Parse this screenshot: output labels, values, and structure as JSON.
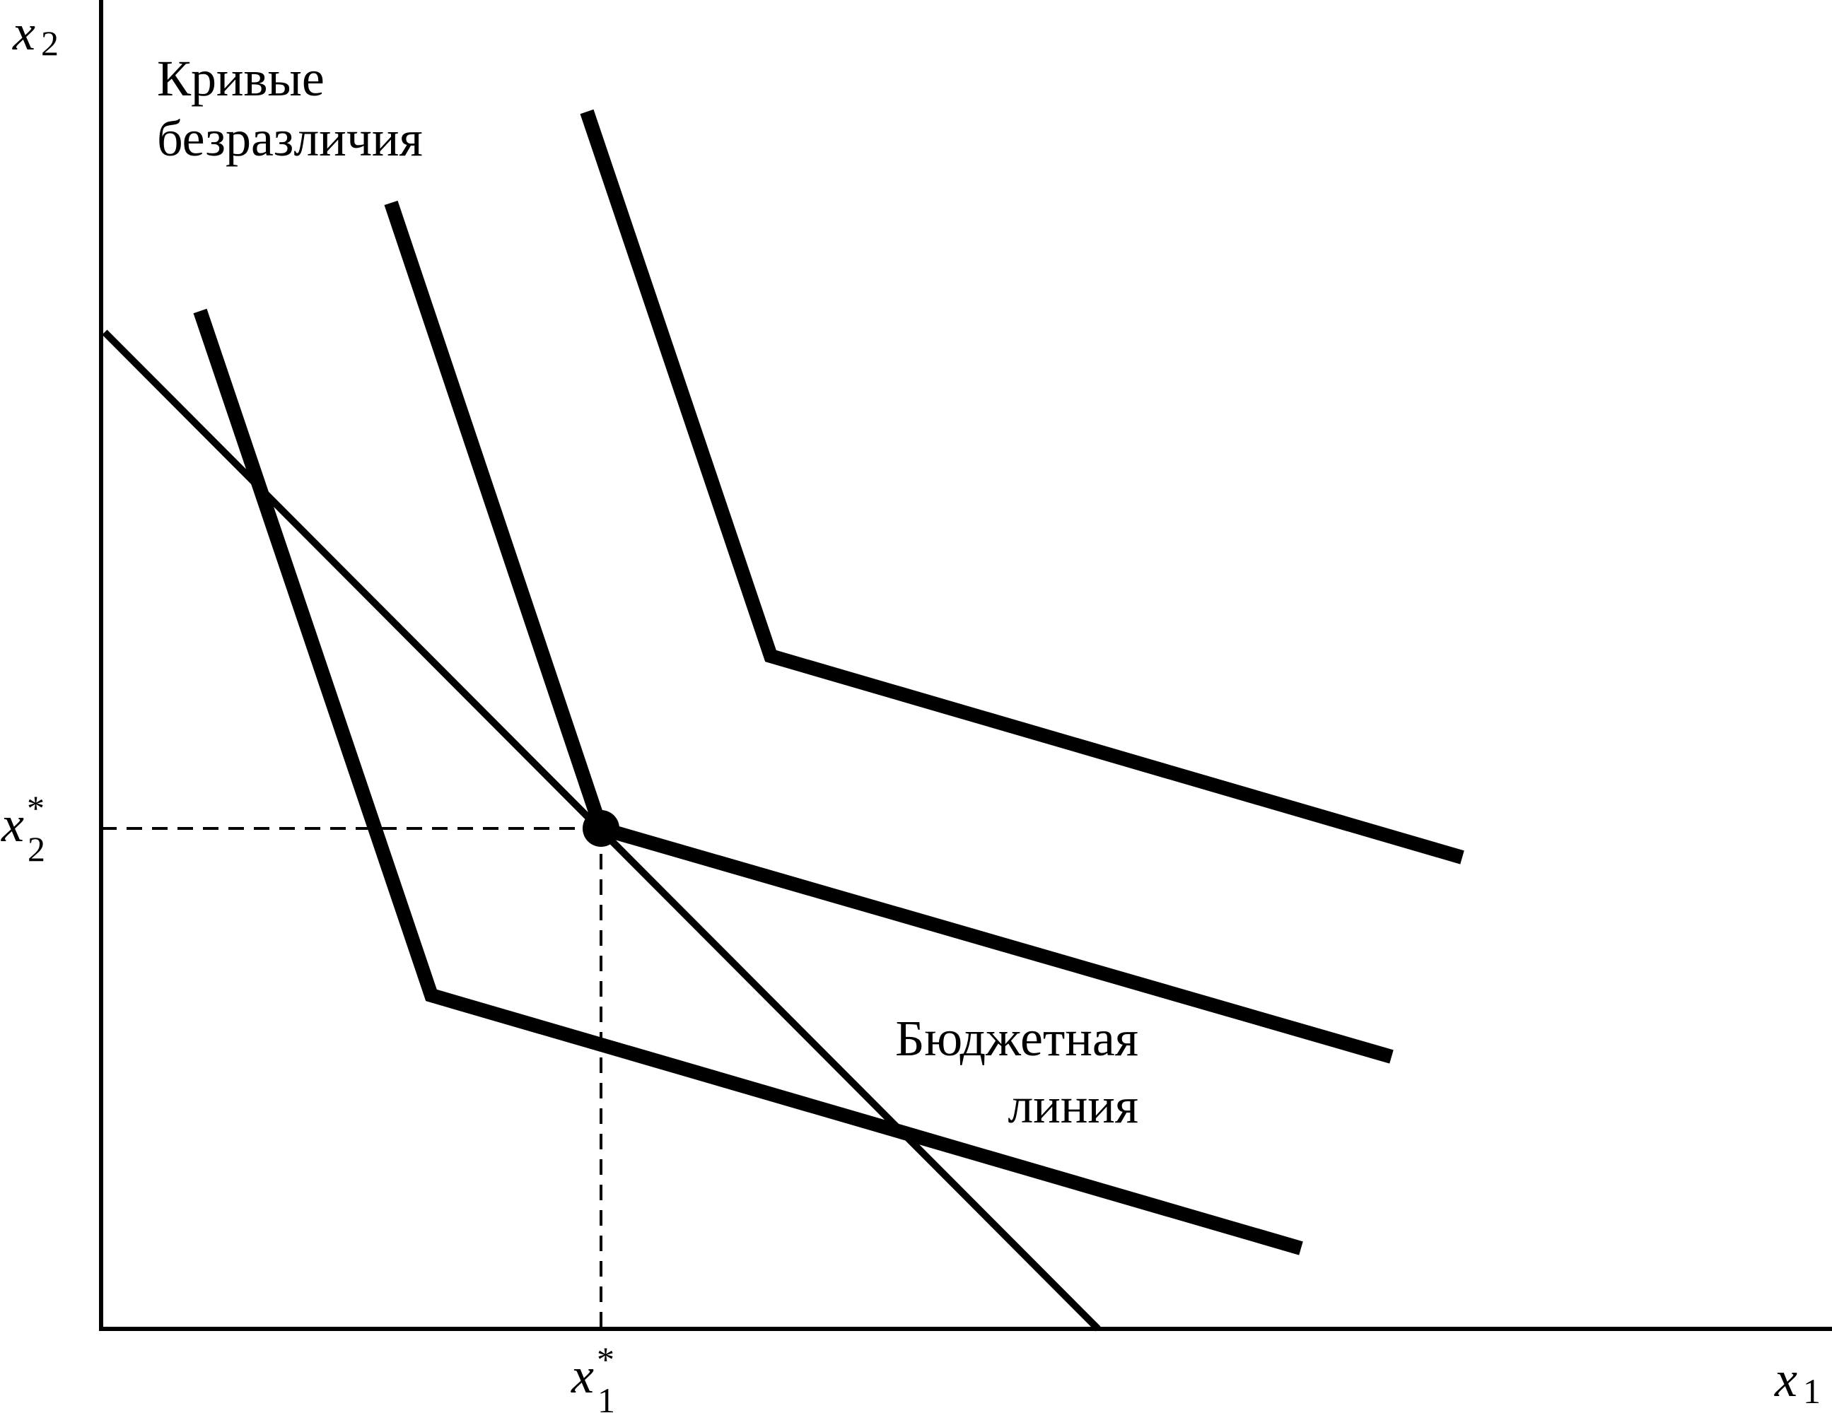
{
  "axes": {
    "y_label": "x",
    "y_label_sub": "2",
    "x_label": "x",
    "x_label_sub": "1"
  },
  "labels": {
    "indifference_line1": "Кривые",
    "indifference_line2": "безразличия",
    "budget_line1": "Бюджетная",
    "budget_line2": "линия"
  },
  "optimum": {
    "x_star_label": "x",
    "x_star_sup": "*",
    "x_star_sub": "1",
    "y_star_label": "x",
    "y_star_sup": "*",
    "y_star_sub": "2"
  },
  "colors": {
    "ink": "#000000",
    "background": "#ffffff"
  }
}
